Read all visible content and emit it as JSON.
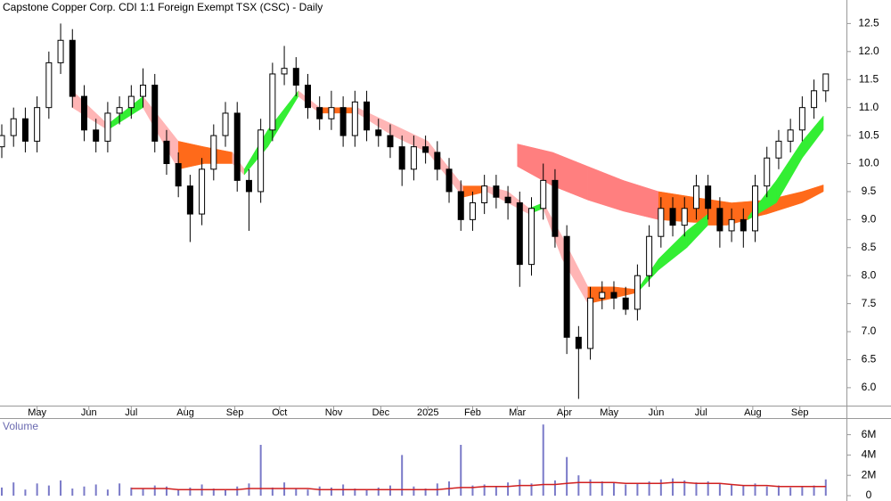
{
  "chart_data": {
    "type": "candlestick",
    "title": "Capstone Copper Corp. CDI 1:1 Foreign Exempt TSX (CSC) - Daily",
    "xlim": [
      0,
      355
    ],
    "xticks": [
      {
        "value": 15,
        "label": "May"
      },
      {
        "value": 37,
        "label": "Jun"
      },
      {
        "value": 55,
        "label": "Jul"
      },
      {
        "value": 78,
        "label": "Aug"
      },
      {
        "value": 99,
        "label": "Sep"
      },
      {
        "value": 118,
        "label": "Oct"
      },
      {
        "value": 141,
        "label": "Nov"
      },
      {
        "value": 161,
        "label": "Dec"
      },
      {
        "value": 181,
        "label": "2025"
      },
      {
        "value": 200,
        "label": "Feb"
      },
      {
        "value": 219,
        "label": "Mar"
      },
      {
        "value": 239,
        "label": "Apr"
      },
      {
        "value": 258,
        "label": "May"
      },
      {
        "value": 278,
        "label": "Jun"
      },
      {
        "value": 297,
        "label": "Jul"
      },
      {
        "value": 319,
        "label": "Aug"
      },
      {
        "value": 339,
        "label": "Sep"
      }
    ],
    "ylim": [
      5.68,
      12.92
    ],
    "yticks": [
      {
        "value": 6,
        "label": "6.0"
      },
      6.5,
      {
        "value": 7,
        "label": "7.0"
      },
      7.5,
      {
        "value": 8,
        "label": "8.0"
      },
      8.5,
      {
        "value": 9,
        "label": "9.0"
      },
      9.5,
      {
        "value": 10,
        "label": "10.0"
      },
      10.5,
      {
        "value": 11,
        "label": "11.0"
      },
      11.5,
      {
        "value": 12,
        "label": "12.0"
      },
      12.5
    ],
    "x": [
      0,
      5,
      10,
      15,
      20,
      25,
      30,
      35,
      40,
      45,
      50,
      55,
      60,
      65,
      70,
      75,
      80,
      85,
      90,
      95,
      100,
      105,
      110,
      115,
      120,
      125,
      130,
      135,
      140,
      145,
      150,
      155,
      160,
      165,
      170,
      175,
      180,
      185,
      190,
      195,
      200,
      205,
      210,
      215,
      220,
      225,
      230,
      235,
      240,
      245,
      250,
      255,
      260,
      265,
      270,
      275,
      280,
      285,
      290,
      295,
      300,
      305,
      310,
      315,
      320,
      325,
      330,
      335,
      340,
      345,
      350
    ],
    "candles": [
      [
        10.3,
        10.7,
        10.1,
        10.5
      ],
      [
        10.5,
        11.0,
        10.3,
        10.8
      ],
      [
        10.8,
        11.0,
        10.2,
        10.4
      ],
      [
        10.4,
        11.2,
        10.2,
        11.0
      ],
      [
        11.0,
        12.0,
        10.8,
        11.8
      ],
      [
        11.8,
        12.5,
        11.6,
        12.2
      ],
      [
        12.2,
        12.4,
        11.0,
        11.2
      ],
      [
        11.2,
        11.4,
        10.4,
        10.6
      ],
      [
        10.6,
        10.8,
        10.2,
        10.4
      ],
      [
        10.4,
        11.1,
        10.2,
        10.9
      ],
      [
        10.9,
        11.2,
        10.7,
        11.0
      ],
      [
        11.0,
        11.4,
        10.8,
        11.2
      ],
      [
        11.2,
        11.7,
        11.0,
        11.4
      ],
      [
        11.4,
        11.6,
        10.2,
        10.4
      ],
      [
        10.4,
        10.6,
        9.8,
        10.0
      ],
      [
        10.0,
        10.2,
        9.4,
        9.6
      ],
      [
        9.6,
        9.8,
        8.6,
        9.1
      ],
      [
        9.1,
        10.1,
        8.9,
        9.9
      ],
      [
        9.9,
        10.7,
        9.7,
        10.5
      ],
      [
        10.5,
        11.1,
        10.3,
        10.9
      ],
      [
        10.9,
        11.1,
        9.5,
        9.7
      ],
      [
        9.7,
        9.9,
        8.8,
        9.5
      ],
      [
        9.5,
        10.8,
        9.3,
        10.6
      ],
      [
        10.6,
        11.8,
        10.4,
        11.6
      ],
      [
        11.6,
        12.1,
        11.4,
        11.7
      ],
      [
        11.7,
        11.9,
        11.2,
        11.4
      ],
      [
        11.4,
        11.6,
        10.8,
        11.0
      ],
      [
        11.0,
        11.2,
        10.6,
        10.8
      ],
      [
        10.8,
        11.3,
        10.6,
        11.0
      ],
      [
        11.0,
        11.2,
        10.3,
        10.5
      ],
      [
        10.5,
        11.3,
        10.3,
        11.1
      ],
      [
        11.1,
        11.3,
        10.4,
        10.6
      ],
      [
        10.6,
        10.8,
        10.3,
        10.5
      ],
      [
        10.5,
        10.7,
        10.1,
        10.3
      ],
      [
        10.3,
        10.5,
        9.6,
        9.9
      ],
      [
        9.9,
        10.5,
        9.7,
        10.3
      ],
      [
        10.3,
        10.5,
        10.0,
        10.2
      ],
      [
        10.2,
        10.4,
        9.7,
        9.9
      ],
      [
        9.9,
        10.1,
        9.3,
        9.5
      ],
      [
        9.5,
        9.7,
        8.8,
        9.0
      ],
      [
        9.0,
        9.5,
        8.8,
        9.3
      ],
      [
        9.3,
        9.8,
        9.1,
        9.6
      ],
      [
        9.6,
        9.8,
        9.2,
        9.4
      ],
      [
        9.4,
        9.6,
        9.0,
        9.3
      ],
      [
        9.3,
        9.5,
        7.8,
        8.2
      ],
      [
        8.2,
        9.4,
        8.0,
        9.2
      ],
      [
        9.2,
        10.0,
        9.0,
        9.7
      ],
      [
        9.7,
        9.9,
        8.5,
        8.7
      ],
      [
        8.7,
        8.9,
        6.6,
        6.9
      ],
      [
        6.9,
        7.1,
        5.8,
        6.7
      ],
      [
        6.7,
        7.8,
        6.5,
        7.6
      ],
      [
        7.6,
        7.9,
        7.4,
        7.7
      ],
      [
        7.7,
        7.9,
        7.4,
        7.6
      ],
      [
        7.6,
        7.8,
        7.3,
        7.4
      ],
      [
        7.4,
        8.2,
        7.2,
        8.0
      ],
      [
        8.0,
        8.9,
        7.8,
        8.7
      ],
      [
        8.7,
        9.4,
        8.5,
        9.2
      ],
      [
        9.2,
        9.4,
        8.7,
        8.9
      ],
      [
        8.9,
        9.4,
        8.7,
        9.2
      ],
      [
        9.2,
        9.8,
        9.0,
        9.6
      ],
      [
        9.6,
        9.8,
        9.0,
        9.2
      ],
      [
        9.2,
        9.4,
        8.5,
        8.8
      ],
      [
        8.8,
        9.2,
        8.6,
        9.0
      ],
      [
        9.0,
        9.2,
        8.5,
        8.8
      ],
      [
        8.8,
        9.8,
        8.6,
        9.6
      ],
      [
        9.6,
        10.3,
        9.4,
        10.1
      ],
      [
        10.1,
        10.6,
        9.9,
        10.4
      ],
      [
        10.4,
        10.8,
        10.2,
        10.6
      ],
      [
        10.6,
        11.2,
        10.4,
        11.0
      ],
      [
        11.0,
        11.5,
        10.8,
        11.3
      ],
      [
        11.3,
        11.6,
        11.1,
        11.6
      ]
    ],
    "bands": [
      {
        "x": [
          219,
          234,
          249,
          264,
          279,
          294,
          310,
          325,
          340,
          349
        ],
        "upper": [
          10.35,
          10.2,
          9.95,
          9.7,
          9.5,
          9.4,
          9.3,
          9.35,
          9.5,
          9.62
        ],
        "lower": [
          9.95,
          9.6,
          9.35,
          9.15,
          9.0,
          8.95,
          8.95,
          9.1,
          9.3,
          9.5
        ],
        "colors": {
          "rising": "#ff6a1a",
          "flat": "#ff6a1a",
          "falling": "#ff7f7f"
        }
      },
      {
        "x": [
          30,
          45,
          60,
          75,
          86,
          98,
          103,
          113,
          126,
          135,
          151,
          166,
          181,
          196,
          206,
          215,
          224,
          230,
          238,
          249,
          260,
          270,
          279,
          291,
          300,
          308,
          317,
          329,
          340,
          349
        ],
        "upper": [
          11.3,
          10.7,
          11.2,
          10.4,
          10.3,
          10.2,
          9.9,
          10.6,
          11.3,
          11.0,
          11.0,
          10.7,
          10.4,
          9.6,
          9.6,
          9.5,
          9.2,
          9.3,
          8.7,
          7.8,
          7.8,
          7.75,
          8.3,
          8.8,
          9.1,
          9.0,
          9.05,
          9.7,
          10.4,
          10.85
        ],
        "lower": [
          11.0,
          10.6,
          11.0,
          9.9,
          10.0,
          10.0,
          9.8,
          10.3,
          11.2,
          10.9,
          10.9,
          10.5,
          10.2,
          9.4,
          9.5,
          9.3,
          9.1,
          9.2,
          8.3,
          7.5,
          7.6,
          7.7,
          8.1,
          8.5,
          8.9,
          8.9,
          9.0,
          9.3,
          10.1,
          10.6
        ],
        "colors": {
          "rising": "#33ee33",
          "flat": "#ff6a1a",
          "falling": "#ffb5b5"
        }
      }
    ],
    "volume_label": "Volume",
    "volume": [
      0.8,
      1.3,
      0.6,
      1.2,
      1.0,
      1.5,
      0.7,
      0.9,
      1.1,
      0.6,
      1.2,
      0.8,
      0.7,
      1.0,
      0.9,
      0.6,
      0.8,
      1.1,
      0.7,
      0.6,
      0.9,
      1.2,
      5.0,
      0.8,
      1.3,
      0.7,
      0.6,
      0.9,
      0.8,
      1.1,
      0.7,
      0.6,
      0.8,
      1.0,
      4.0,
      0.9,
      0.7,
      1.2,
      1.4,
      5.0,
      1.0,
      1.1,
      0.9,
      1.3,
      1.6,
      1.2,
      7.0,
      1.5,
      3.8,
      2.0,
      1.6,
      1.4,
      1.3,
      1.1,
      1.2,
      1.4,
      1.6,
      1.7,
      1.5,
      1.3,
      1.4,
      1.2,
      1.1,
      1.0,
      1.2,
      0.9,
      1.0,
      0.8,
      0.9,
      1.0,
      1.6
    ],
    "volume_ma": [
      null,
      null,
      null,
      null,
      null,
      null,
      null,
      null,
      null,
      null,
      null,
      0.7,
      0.7,
      0.7,
      0.7,
      0.6,
      0.6,
      0.6,
      0.6,
      0.6,
      0.6,
      0.7,
      0.7,
      0.7,
      0.7,
      0.7,
      0.7,
      0.6,
      0.6,
      0.6,
      0.6,
      0.6,
      0.6,
      0.6,
      0.6,
      0.6,
      0.6,
      0.6,
      0.7,
      0.8,
      0.8,
      0.9,
      0.9,
      0.9,
      1.0,
      1.0,
      1.1,
      1.1,
      1.2,
      1.3,
      1.3,
      1.3,
      1.3,
      1.2,
      1.2,
      1.2,
      1.2,
      1.3,
      1.3,
      1.2,
      1.2,
      1.2,
      1.1,
      1.0,
      1.0,
      1.0,
      0.9,
      0.9,
      0.9,
      0.9,
      0.9
    ],
    "volume_color": "#7a7ac8",
    "volume_ma_color": "#d02020",
    "vlim": [
      0,
      7.5
    ],
    "vticks": [
      0,
      {
        "value": 2,
        "label": "2M"
      },
      {
        "value": 4,
        "label": "4M"
      },
      {
        "value": 6,
        "label": "6M"
      }
    ]
  }
}
